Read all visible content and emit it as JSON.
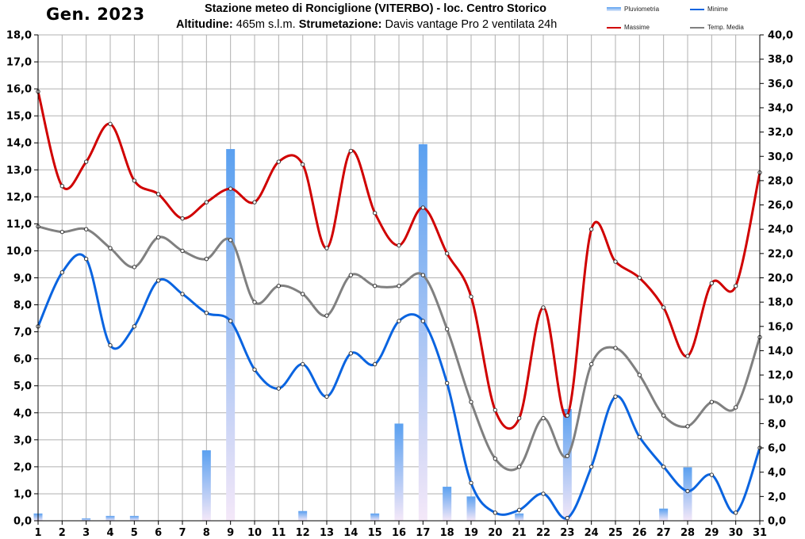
{
  "header": {
    "title": "Gen. 2023",
    "station": "Stazione meteo di Ronciglione (VITERBO) - loc. Centro Storico",
    "altitude_label": "Altitudine:",
    "altitude_value": "465m s.l.m.",
    "instr_label": "Strumetazione:",
    "instr_value": "Davis vantage Pro 2  ventilata 24h"
  },
  "legend": {
    "rain": "Pluviometria",
    "min": "Minime",
    "max": "Massime",
    "avg": "Temp. Media"
  },
  "colors": {
    "max": "#d00000",
    "min": "#0a64e0",
    "avg": "#808080",
    "rain_top": "#5aa0f0",
    "rain_bottom": "#f4e8f8",
    "grid": "#b0b0b0"
  },
  "chart_data": {
    "type": "line",
    "x": [
      1,
      2,
      3,
      4,
      5,
      6,
      7,
      8,
      9,
      10,
      11,
      12,
      13,
      14,
      15,
      16,
      17,
      18,
      19,
      20,
      21,
      22,
      23,
      24,
      25,
      26,
      27,
      28,
      29,
      30,
      31
    ],
    "x_ticks": [
      "1",
      "2",
      "3",
      "4",
      "5",
      "6",
      "7",
      "8",
      "9",
      "10",
      "11",
      "12",
      "13",
      "14",
      "15",
      "16",
      "17",
      "18",
      "19",
      "20",
      "21",
      "22",
      "23",
      "24",
      "25",
      "26",
      "27",
      "28",
      "29",
      "30",
      "31"
    ],
    "left_axis": {
      "ylim": [
        0,
        18
      ],
      "ticks": [
        "0,0",
        "1,0",
        "2,0",
        "3,0",
        "4,0",
        "5,0",
        "6,0",
        "7,0",
        "8,0",
        "9,0",
        "10,0",
        "11,0",
        "12,0",
        "13,0",
        "14,0",
        "15,0",
        "16,0",
        "17,0",
        "18,0"
      ]
    },
    "right_axis": {
      "ylim": [
        0,
        40
      ],
      "ticks": [
        "0,0",
        "2,0",
        "4,0",
        "6,0",
        "8,0",
        "10,0",
        "12,0",
        "14,0",
        "16,0",
        "18,0",
        "20,0",
        "22,0",
        "24,0",
        "26,0",
        "28,0",
        "30,0",
        "32,0",
        "34,0",
        "36,0",
        "38,0",
        "40,0"
      ]
    },
    "grid": true,
    "series": [
      {
        "name": "Pluviometria",
        "type": "bar",
        "axis": "right",
        "values": [
          0.6,
          0,
          0.2,
          0.4,
          0.4,
          0,
          0,
          5.8,
          30.6,
          0,
          0,
          0.8,
          0,
          0,
          0.6,
          8.0,
          31.0,
          2.8,
          2.0,
          0,
          0.6,
          0,
          9.2,
          0,
          0,
          0,
          1.0,
          4.4,
          0,
          0,
          0
        ]
      },
      {
        "name": "Massime",
        "type": "line",
        "axis": "left",
        "values": [
          15.9,
          12.4,
          13.3,
          14.7,
          12.6,
          12.1,
          11.2,
          11.8,
          12.3,
          11.8,
          13.3,
          13.2,
          10.1,
          13.7,
          11.4,
          10.2,
          11.6,
          9.9,
          8.3,
          4.1,
          3.8,
          7.9,
          3.9,
          10.8,
          9.6,
          9.0,
          7.9,
          6.1,
          8.8,
          8.7,
          12.9
        ]
      },
      {
        "name": "Minime",
        "type": "line",
        "axis": "left",
        "values": [
          7.2,
          9.2,
          9.7,
          6.5,
          7.2,
          8.9,
          8.4,
          7.7,
          7.4,
          5.6,
          4.9,
          5.8,
          4.6,
          6.2,
          5.8,
          7.4,
          7.4,
          5.1,
          1.4,
          0.3,
          0.4,
          1.0,
          0.1,
          2.0,
          4.6,
          3.1,
          2.0,
          1.1,
          1.7,
          0.3,
          2.7
        ]
      },
      {
        "name": "Temp. Media",
        "type": "line",
        "axis": "left",
        "values": [
          10.9,
          10.7,
          10.8,
          10.1,
          9.4,
          10.5,
          10.0,
          9.7,
          10.4,
          8.1,
          8.7,
          8.4,
          7.6,
          9.1,
          8.7,
          8.7,
          9.1,
          7.1,
          4.4,
          2.3,
          2.0,
          3.8,
          2.4,
          5.8,
          6.4,
          5.4,
          3.9,
          3.5,
          4.4,
          4.2,
          6.8
        ]
      }
    ]
  }
}
